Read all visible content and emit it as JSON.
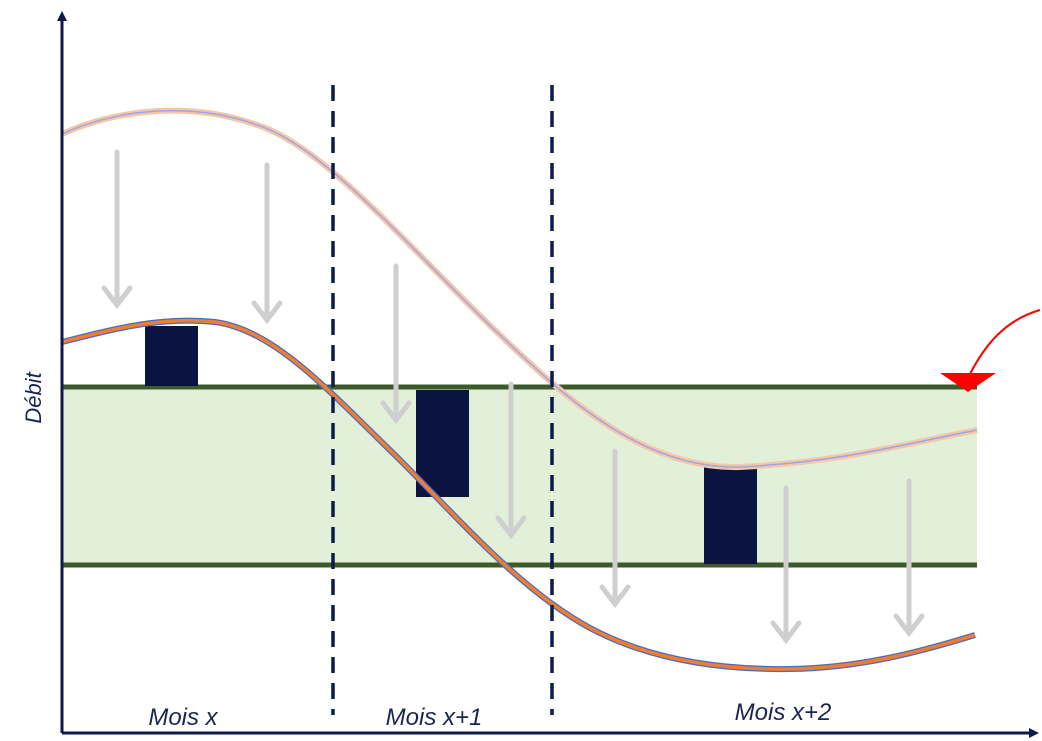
{
  "diagram": {
    "y_axis_label": "Débit",
    "periods": [
      "Mois x",
      "Mois x+1",
      "Mois x+2"
    ],
    "colors": {
      "axis": "#0d1a4a",
      "band_fill": "#e2efd9",
      "band_border": "#3d5a2a",
      "upper_curve_outer": "#f6c6a7",
      "upper_curve_inner": "#9aa7ea",
      "lower_curve_outer": "#ef7d32",
      "lower_curve_inner": "#4d6bbf",
      "reduction_arrow": "#cfcfcf",
      "excess_block": "#0b1440",
      "divider": "#0d1a4a",
      "pointer_arrow": "#ff0000"
    }
  }
}
